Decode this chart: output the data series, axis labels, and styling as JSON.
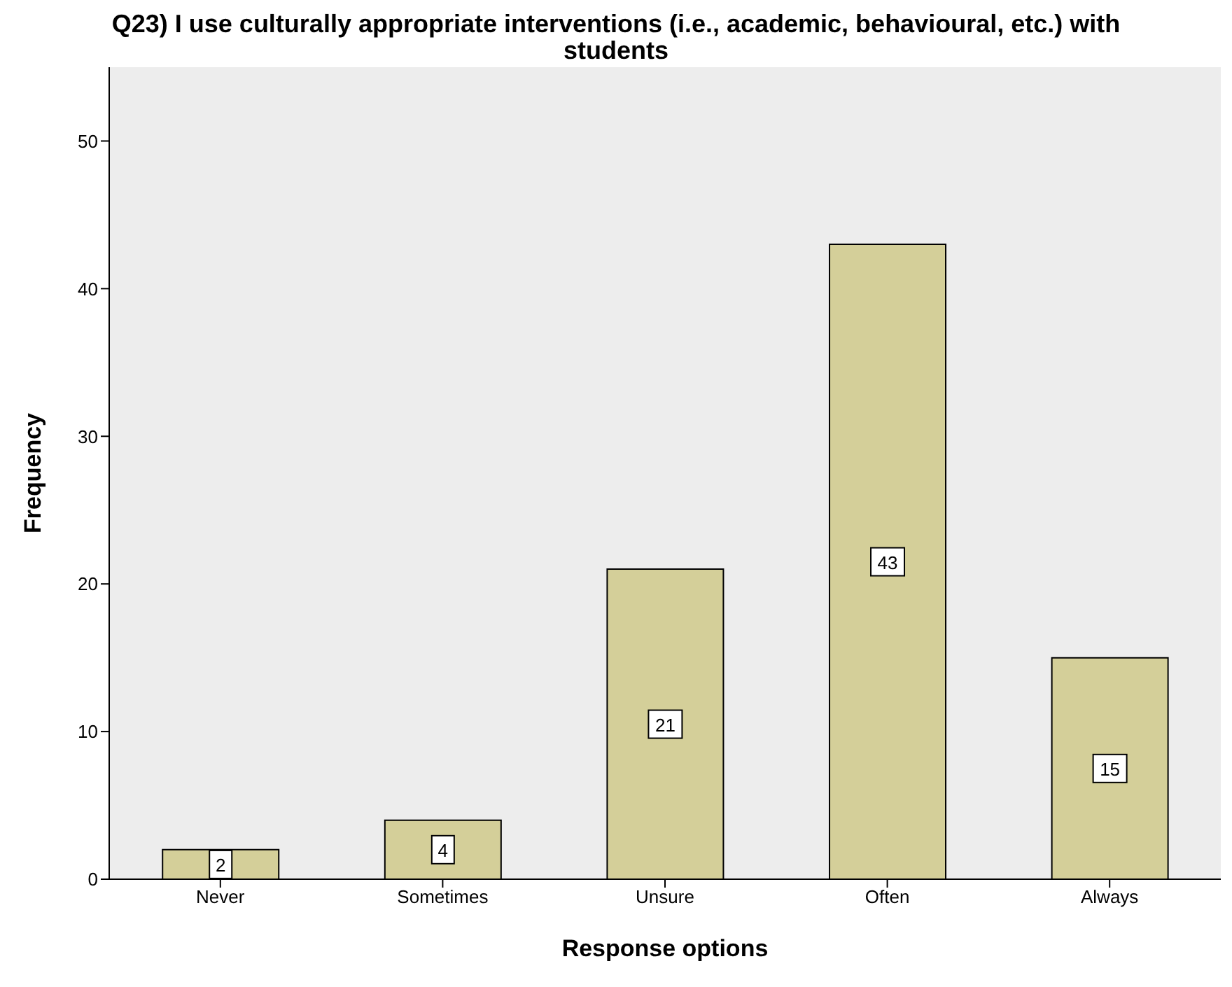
{
  "chart_data": {
    "type": "bar",
    "title": "Q23) I use culturally appropriate interventions (i.e., academic, behavioural, etc.) with students",
    "xlabel": "Response options",
    "ylabel": "Frequency",
    "categories": [
      "Never",
      "Sometimes",
      "Unsure",
      "Often",
      "Always"
    ],
    "values": [
      2,
      4,
      21,
      43,
      15
    ],
    "color": "#d4cf99",
    "ylim": [
      0,
      55
    ],
    "yticks": [
      0,
      10,
      20,
      30,
      40,
      50
    ],
    "grid": false,
    "data_labels": true
  }
}
